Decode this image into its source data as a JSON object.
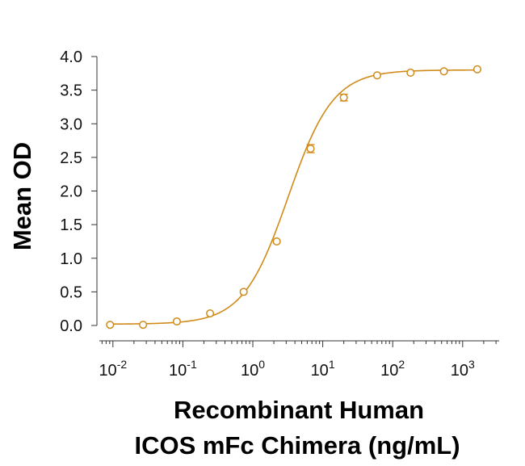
{
  "chart_data": {
    "type": "scatter",
    "title": "",
    "xlabel_lines": [
      "Recombinant Human",
      "ICOS mFc Chimera (ng/mL)"
    ],
    "ylabel": "Mean OD",
    "xscale": "log",
    "xlim": [
      0.0055,
      3000
    ],
    "ylim": [
      0,
      4.0
    ],
    "x_ticks": [
      {
        "value": 0.01,
        "base": "10",
        "exp": "-2"
      },
      {
        "value": 0.1,
        "base": "10",
        "exp": "-1"
      },
      {
        "value": 1,
        "base": "10",
        "exp": "0"
      },
      {
        "value": 10,
        "base": "10",
        "exp": "1"
      },
      {
        "value": 100,
        "base": "10",
        "exp": "2"
      },
      {
        "value": 1000,
        "base": "10",
        "exp": "3"
      }
    ],
    "y_ticks": [
      "0.0",
      "0.5",
      "1.0",
      "1.5",
      "2.0",
      "2.5",
      "3.0",
      "3.5",
      "4.0"
    ],
    "grid": false,
    "legend": "none",
    "series": [
      {
        "color": "#d08a18",
        "x": [
          0.0091,
          0.027,
          0.082,
          0.245,
          0.74,
          2.2,
          6.7,
          20,
          60,
          180,
          540,
          1620
        ],
        "y": [
          0.01,
          0.01,
          0.06,
          0.18,
          0.5,
          1.25,
          2.63,
          3.39,
          3.72,
          3.76,
          3.78,
          3.81
        ],
        "err": [
          0,
          0,
          0,
          0,
          0,
          0,
          0.06,
          0.05,
          0,
          0,
          0,
          0
        ]
      }
    ],
    "fit": {
      "model": "4PL",
      "bottom": 0.02,
      "top": 3.8,
      "ec50": 3.2,
      "hill": 1.35,
      "color": "#d08a18"
    }
  }
}
